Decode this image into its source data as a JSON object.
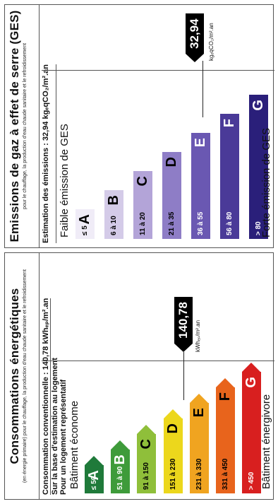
{
  "energy": {
    "title": "Consommations énergétiques",
    "subtitle": "(en énergie primaire) pour le chauffage, la production d'eau chaude sanitaire et le refroidissement",
    "line1": "Consommation conventionnelle : 140,78 kWhₑₚ/m².an",
    "line2": "Sur la base d'estimation au logement",
    "line3": "Pour un logement représentatif",
    "top_label": "Bâtiment économe",
    "bottom_label": "Bâtiment énergivore",
    "value": "140,78",
    "value_numeric": 140.78,
    "current_class": "C",
    "unit": "kWhₑₚ/m².an",
    "classes": [
      {
        "letter": "A",
        "range": "≤ 50",
        "color": "#1f7a3a",
        "text_color": "#ffffff"
      },
      {
        "letter": "B",
        "range": "51 à 90",
        "color": "#3e9b3a",
        "text_color": "#ffffff"
      },
      {
        "letter": "C",
        "range": "91 à 150",
        "color": "#8fbf3a",
        "text_color": "#000000"
      },
      {
        "letter": "D",
        "range": "151 à 230",
        "color": "#ecd71c",
        "text_color": "#000000"
      },
      {
        "letter": "E",
        "range": "231 à 330",
        "color": "#f0a420",
        "text_color": "#000000"
      },
      {
        "letter": "F",
        "range": "331 à 450",
        "color": "#e8641c",
        "text_color": "#000000"
      },
      {
        "letter": "G",
        "range": "> 450",
        "color": "#d81f1f",
        "text_color": "#ffffff"
      }
    ]
  },
  "ges": {
    "title": "Emissions de gaz à effet de serre (GES)",
    "subtitle": "pour le chauffage, la production d'eau chaude sanitaire et le refroidissement",
    "line1": "Estimation des émissions : 32,94 kgₑqCO₂/m².an",
    "top_label": "Faible émission de GES",
    "bottom_label": "Forte émission de GES",
    "value": "32,94",
    "value_numeric": 32.94,
    "current_class": "D",
    "unit": "kgₑqCO₂/m².an",
    "classes": [
      {
        "letter": "A",
        "range": "≤ 5",
        "color": "#f0ecf7",
        "text_color": "#000000"
      },
      {
        "letter": "B",
        "range": "6 à 10",
        "color": "#d4cbe8",
        "text_color": "#000000"
      },
      {
        "letter": "C",
        "range": "11 à 20",
        "color": "#b3a4d8",
        "text_color": "#000000"
      },
      {
        "letter": "D",
        "range": "21 à 35",
        "color": "#8e7dc6",
        "text_color": "#000000"
      },
      {
        "letter": "E",
        "range": "36 à 55",
        "color": "#6a58b2",
        "text_color": "#ffffff"
      },
      {
        "letter": "F",
        "range": "56 à 80",
        "color": "#4a3a98",
        "text_color": "#ffffff"
      },
      {
        "letter": "G",
        "range": "> 80",
        "color": "#2a1f7a",
        "text_color": "#ffffff"
      }
    ]
  }
}
